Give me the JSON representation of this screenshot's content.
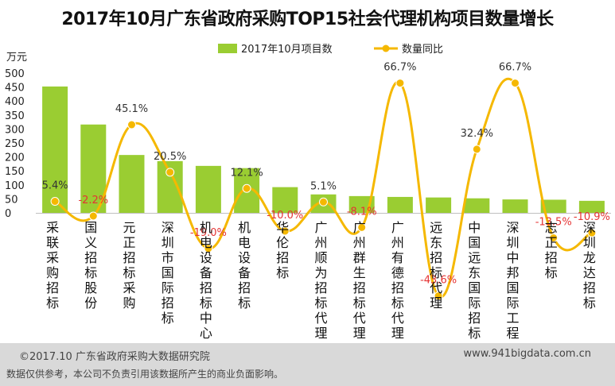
{
  "title": "2017年10月广东省政府采购TOP15社会代理机构项目数量增长",
  "footer": {
    "source": "©2017.10 广东省政府采购大数据研究院",
    "website": "www.941bigdata.com.cn",
    "disclaimer": "数据仅供参考，本公司不负责引用该数据所产生的商业负面影响。"
  },
  "colors": {
    "bar": "#9acd32",
    "line": "#f5b800",
    "positive_label": "#333333",
    "negative_label": "#e53333"
  },
  "chart_data": {
    "type": "bar",
    "ylabel": "万元",
    "ylim": [
      0,
      500
    ],
    "yticks": [
      0,
      50,
      100,
      150,
      200,
      250,
      300,
      350,
      400,
      450,
      500
    ],
    "legend": "top",
    "categories": [
      "采联采购招标",
      "国义招标股份",
      "元正招标采购",
      "深圳市国际招标",
      "机电设备招标中心",
      "机电设备招标",
      "华伦招标",
      "广州顺为招标代理",
      "广州群生招标代理",
      "广州有德招标代理",
      "远东招标代理",
      "中国远东国际招标",
      "深圳中邦国际工程",
      "志正招标",
      "深圳龙达招标"
    ],
    "series": [
      {
        "name": "2017年10月项目数",
        "type": "bar",
        "values": [
          452,
          316,
          207,
          185,
          168,
          160,
          92,
          66,
          60,
          57,
          55,
          52,
          48,
          47,
          43
        ]
      },
      {
        "name": "数量同比",
        "type": "line",
        "values": [
          5.4,
          -2.2,
          45.1,
          20.5,
          -19.0,
          12.1,
          -10.0,
          5.1,
          -8.1,
          66.7,
          -43.6,
          32.4,
          66.7,
          -13.5,
          -10.9
        ],
        "labels": [
          "5.4%",
          "-2.2%",
          "45.1%",
          "20.5%",
          "-19.0%",
          "12.1%",
          "-10.0%",
          "5.1%",
          "-8.1%",
          "66.7%",
          "-43.6%",
          "32.4%",
          "66.7%",
          "-13.5%",
          "-10.9%"
        ]
      }
    ]
  }
}
